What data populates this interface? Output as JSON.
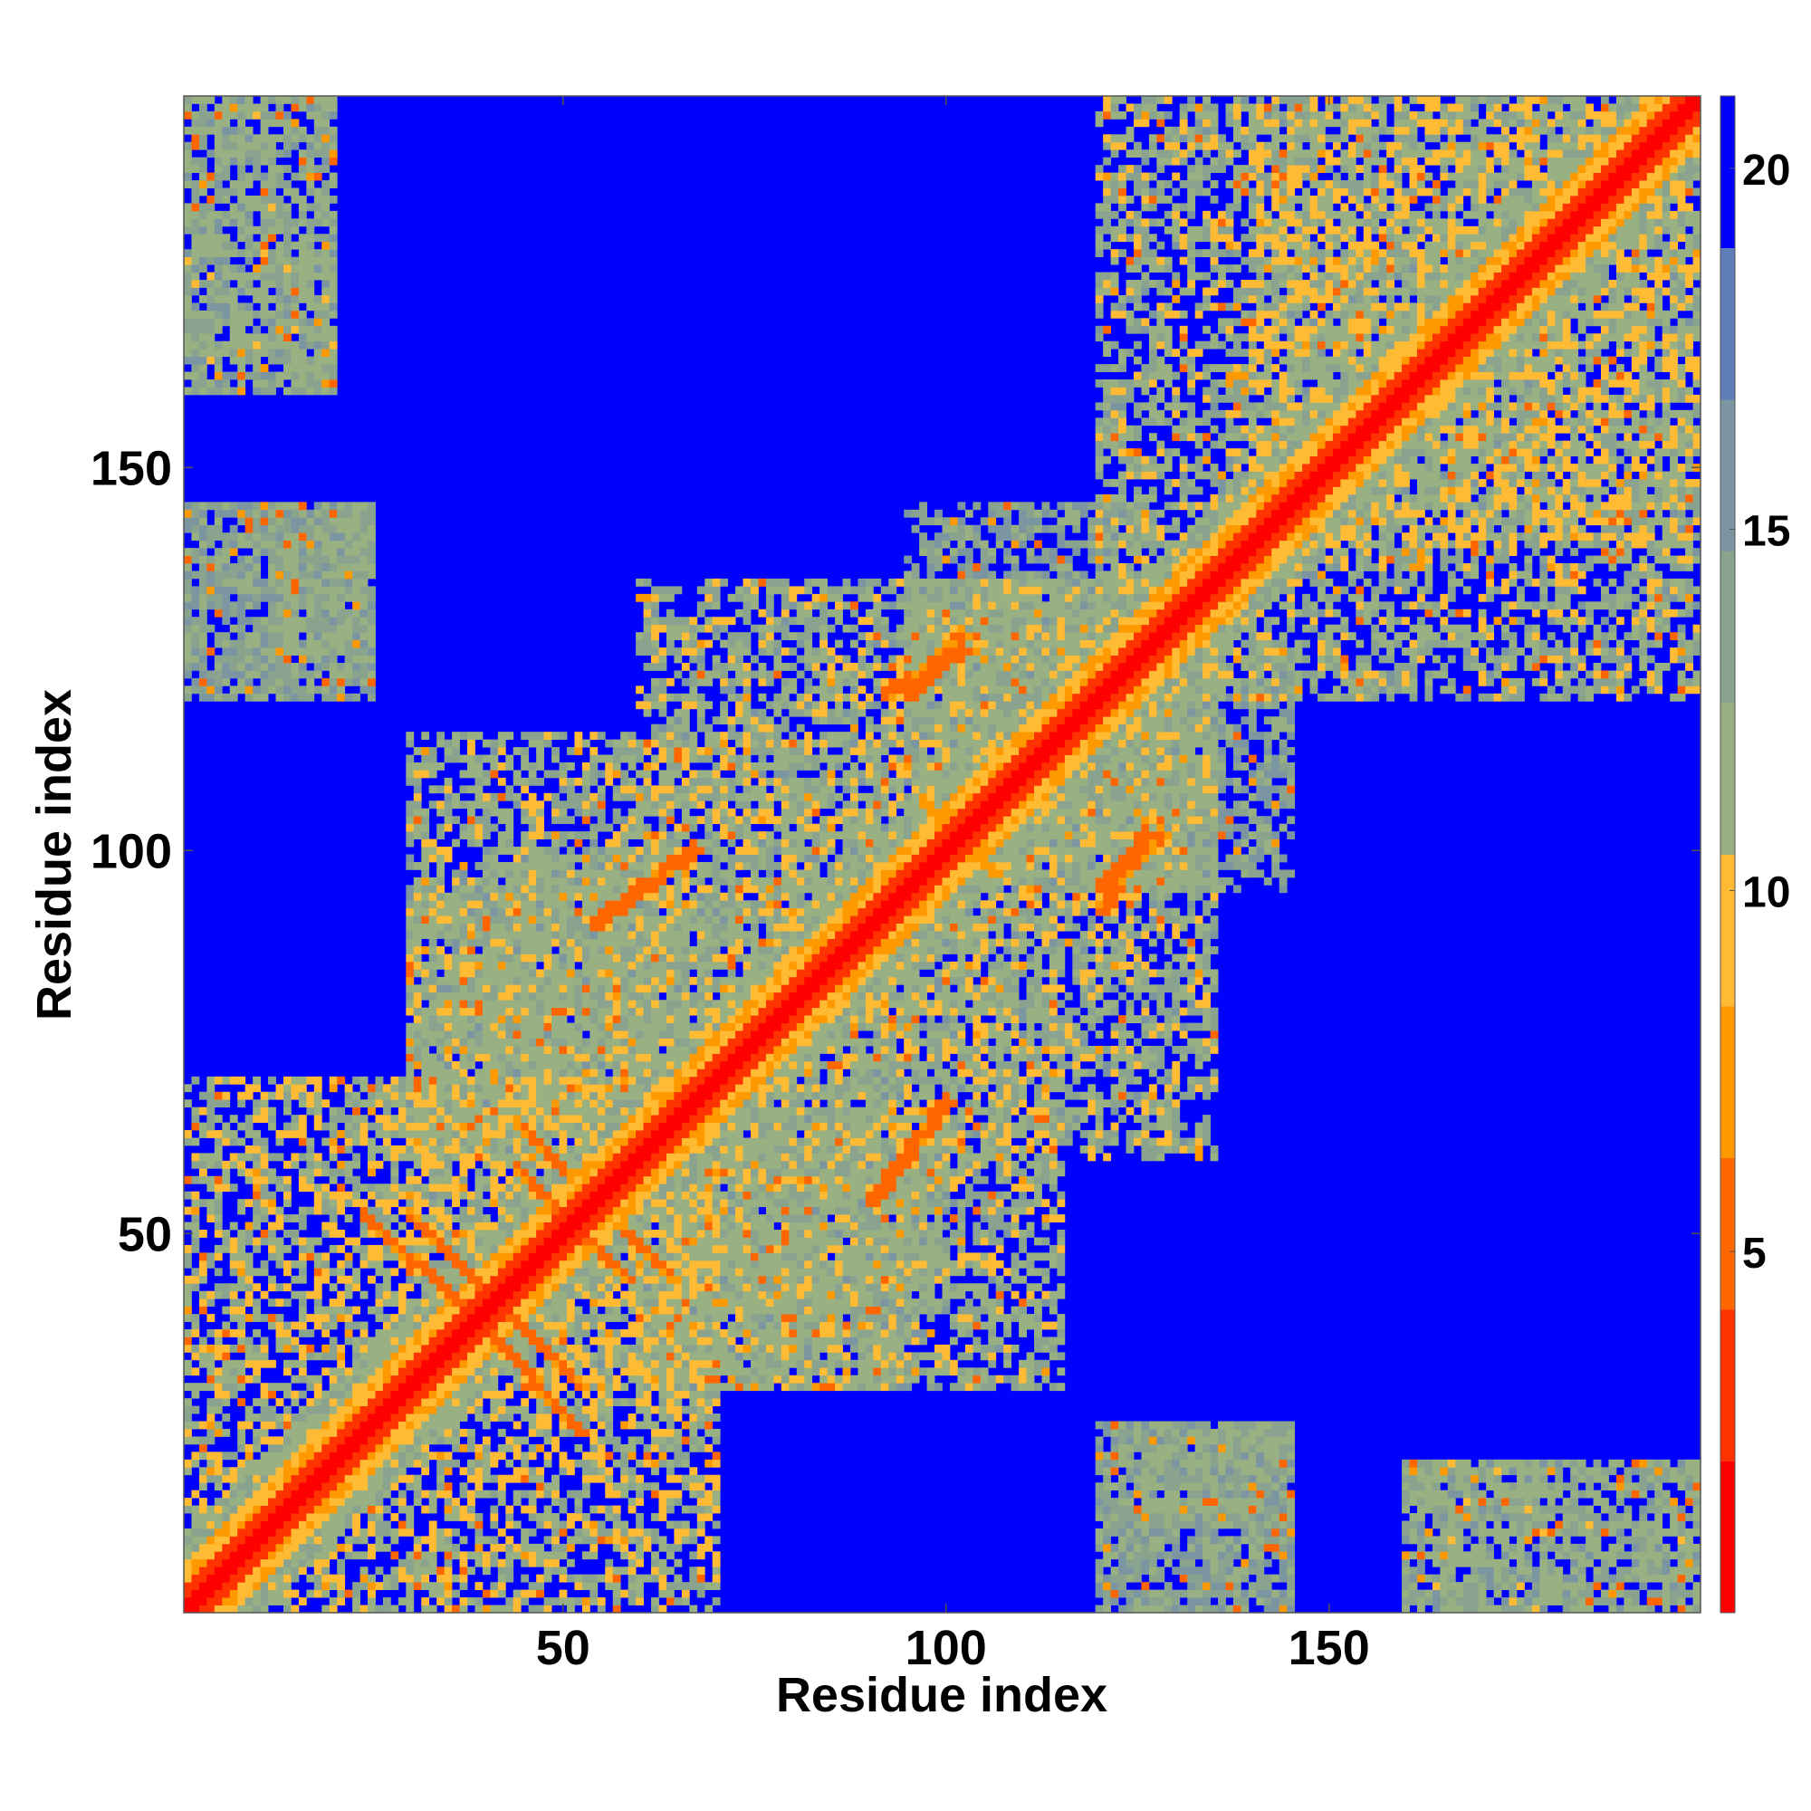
{
  "chart_data": {
    "type": "heatmap",
    "title": "",
    "xlabel": "Residue index",
    "ylabel": "Residue index",
    "xlim": [
      1,
      198
    ],
    "ylim": [
      1,
      198
    ],
    "x_ticks": [
      50,
      100,
      150
    ],
    "y_ticks": [
      50,
      100,
      150
    ],
    "colorbar": {
      "range": [
        0,
        21
      ],
      "ticks": [
        5,
        10,
        15,
        20
      ],
      "palette": [
        "#ff0000",
        "#ff3300",
        "#ff6600",
        "#ff9900",
        "#ffbb33",
        "#99b083",
        "#8aa38f",
        "#7b96a0",
        "#5f7fb8",
        "#0000ff"
      ]
    },
    "matrix_summary": {
      "values": "pairwise distance between residues, 198 x 198, symmetric; 0 on the diagonal, values above 21 drawn as the blue background",
      "diagonal_band_min": 0,
      "close_contact_range": [
        5,
        8
      ],
      "mid_range": [
        9,
        16
      ],
      "far_value": 21
    },
    "contact_segments": [
      {
        "from": [
          30,
          52
        ],
        "to": [
          42,
          40
        ],
        "value": 6
      },
      {
        "from": [
          44,
          58
        ],
        "to": [
          52,
          50
        ],
        "value": 6
      },
      {
        "from": [
          40,
          37
        ],
        "to": [
          52,
          24
        ],
        "value": 6
      },
      {
        "from": [
          58,
          50
        ],
        "to": [
          64,
          44
        ],
        "value": 6
      },
      {
        "from": [
          54,
          90
        ],
        "to": [
          67,
          100
        ],
        "value": 6
      },
      {
        "from": [
          90,
          54
        ],
        "to": [
          100,
          67
        ],
        "value": 6
      },
      {
        "from": [
          92,
          120
        ],
        "to": [
          102,
          126
        ],
        "value": 6
      },
      {
        "from": [
          120,
          92
        ],
        "to": [
          126,
          102
        ],
        "value": 6
      },
      {
        "from": [
          120,
          95
        ],
        "to": [
          128,
          102
        ],
        "value": 6
      },
      {
        "from": [
          100,
          103
        ],
        "to": [
          106,
          97
        ],
        "value": 7
      }
    ],
    "domain_blocks": [
      {
        "x": [
          1,
          70
        ],
        "y": [
          1,
          70
        ],
        "value": 12
      },
      {
        "x": [
          30,
          115
        ],
        "y": [
          30,
          115
        ],
        "value": 13
      },
      {
        "x": [
          60,
          135
        ],
        "y": [
          60,
          135
        ],
        "value": 13
      },
      {
        "x": [
          120,
          198
        ],
        "y": [
          120,
          198
        ],
        "value": 13
      },
      {
        "x": [
          140,
          198
        ],
        "y": [
          140,
          198
        ],
        "value": 12
      },
      {
        "x": [
          1,
          20
        ],
        "y": [
          160,
          198
        ],
        "value": 14
      },
      {
        "x": [
          160,
          198
        ],
        "y": [
          1,
          20
        ],
        "value": 14
      },
      {
        "x": [
          1,
          25
        ],
        "y": [
          120,
          145
        ],
        "value": 15
      },
      {
        "x": [
          120,
          145
        ],
        "y": [
          1,
          25
        ],
        "value": 15
      },
      {
        "x": [
          30,
          50
        ],
        "y": [
          60,
          95
        ],
        "value": 14
      },
      {
        "x": [
          60,
          95
        ],
        "y": [
          30,
          50
        ],
        "value": 14
      },
      {
        "x": [
          95,
          125
        ],
        "y": [
          100,
          135
        ],
        "value": 14
      },
      {
        "x": [
          100,
          135
        ],
        "y": [
          95,
          125
        ],
        "value": 14
      },
      {
        "x": [
          115,
          145
        ],
        "y": [
          95,
          125
        ],
        "value": 15
      },
      {
        "x": [
          125,
          145
        ],
        "y": [
          12,
          25
        ],
        "value": 15
      },
      {
        "x": [
          12,
          25
        ],
        "y": [
          125,
          145
        ],
        "value": 15
      },
      {
        "x": [
          65,
          100
        ],
        "y": [
          40,
          65
        ],
        "value": 14
      },
      {
        "x": [
          40,
          65
        ],
        "y": [
          65,
          100
        ],
        "value": 14
      }
    ]
  }
}
